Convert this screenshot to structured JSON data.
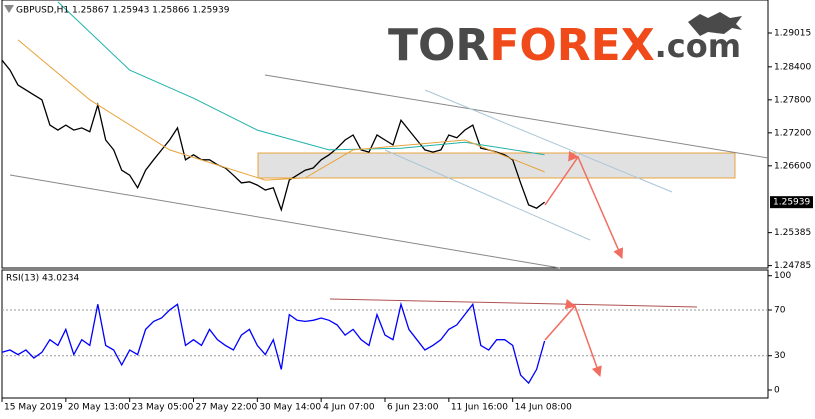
{
  "chart_data": [
    {
      "type": "line",
      "title": "GBPUSD,H1  1.25867 1.25943 1.25866 1.25939",
      "watermark": [
        "TOR",
        "FOREX",
        ".com"
      ],
      "xlim": [
        0,
        96
      ],
      "ylim": [
        1.24742,
        1.29615
      ],
      "yticks": [
        1.29015,
        {
          "value": 1.284,
          "label": "1.28400"
        },
        {
          "value": 1.278,
          "label": "1.27800"
        },
        {
          "value": 1.272,
          "label": "1.27200"
        },
        {
          "value": 1.266,
          "label": "1.26600"
        },
        1.25385,
        1.24785
      ],
      "last_price": 1.25939,
      "grid": false,
      "series": [
        {
          "name": "GBPUSD",
          "color": "#000000",
          "values": [
            1.2852,
            1.2834,
            1.2807,
            1.2798,
            1.2789,
            1.278,
            1.2734,
            1.2725,
            1.2734,
            1.2725,
            1.2729,
            1.2722,
            1.2771,
            1.2707,
            1.2689,
            1.2652,
            1.2643,
            1.262,
            1.2652,
            1.2671,
            1.2689,
            1.2707,
            1.2729,
            1.2671,
            1.268,
            1.2671,
            1.2671,
            1.2662,
            1.2656,
            1.2643,
            1.2629,
            1.2631,
            1.2625,
            1.2616,
            1.262,
            1.258,
            1.2634,
            1.2643,
            1.2652,
            1.2656,
            1.2671,
            1.268,
            1.2692,
            1.2707,
            1.2716,
            1.2689,
            1.2685,
            1.2716,
            1.2707,
            1.2698,
            1.2743,
            1.2725,
            1.2707,
            1.2689,
            1.2685,
            1.2689,
            1.2716,
            1.2711,
            1.2725,
            1.2734,
            1.2692,
            1.2689,
            1.2685,
            1.268,
            1.2671,
            1.2629,
            1.2589,
            1.2583,
            1.2594
          ]
        },
        {
          "color": "#20b2aa",
          "x": [
            7,
            16,
            24,
            32,
            41,
            50,
            58,
            68
          ],
          "values": [
            1.2958,
            1.2834,
            1.2783,
            1.2725,
            1.2689,
            1.2692,
            1.2703,
            1.268
          ]
        },
        {
          "color": "#e8a33c",
          "x": [
            2,
            11,
            21,
            33,
            38,
            44,
            58,
            68
          ],
          "values": [
            1.2889,
            1.278,
            1.2689,
            1.2634,
            1.2638,
            1.2689,
            1.2707,
            1.2649
          ]
        }
      ]
    },
    {
      "type": "line",
      "title": "RSI(13) 43.0234",
      "xlim": [
        0,
        96
      ],
      "ylim": [
        -7,
        105
      ],
      "yticks": [
        100,
        70,
        30,
        0
      ],
      "levels": [
        70,
        30
      ],
      "xticks": [
        {
          "value": 0,
          "label": "15 May 2019"
        },
        {
          "value": 8,
          "label": "20 May 13:00"
        },
        {
          "value": 16,
          "label": "23 May 05:00"
        },
        {
          "value": 24,
          "label": "27 May 22:00"
        },
        {
          "value": 32,
          "label": "30 May 14:00"
        },
        {
          "value": 40,
          "label": "4 Jun 07:00"
        },
        {
          "value": 48,
          "label": "6 Jun 23:00"
        },
        {
          "value": 56,
          "label": "11 Jun 16:00"
        },
        {
          "value": 64,
          "label": "14 Jun 08:00"
        }
      ],
      "series": [
        {
          "color": "#0000ff",
          "values": [
            33,
            35,
            31,
            35,
            28,
            33,
            44,
            39,
            53,
            31,
            44,
            39,
            75,
            39,
            35,
            22,
            35,
            31,
            53,
            60,
            63,
            70,
            75,
            39,
            44,
            39,
            53,
            44,
            39,
            35,
            48,
            53,
            39,
            31,
            44,
            18,
            66,
            61,
            60,
            61,
            63,
            61,
            57,
            48,
            53,
            44,
            39,
            66,
            48,
            44,
            75,
            53,
            44,
            35,
            39,
            44,
            53,
            57,
            66,
            75,
            39,
            35,
            44,
            44,
            39,
            13,
            6,
            18,
            43
          ]
        }
      ]
    }
  ]
}
